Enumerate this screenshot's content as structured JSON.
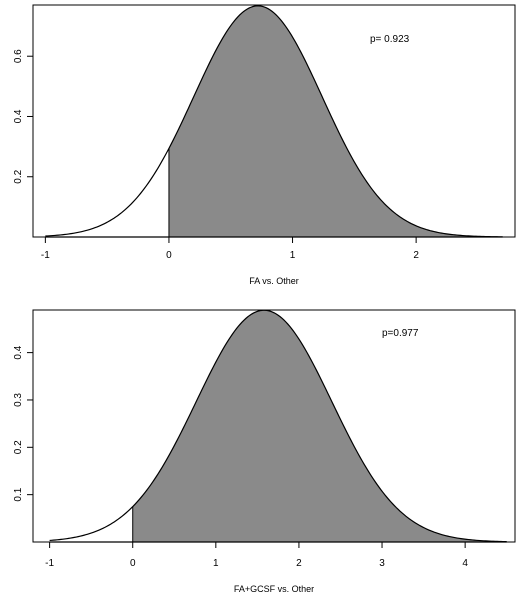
{
  "chart_data": [
    {
      "type": "area",
      "xlabel": "FA vs. Other",
      "annotation": "p= 0.923",
      "xlim": [
        -1.1,
        2.8
      ],
      "ylim": [
        0,
        0.77
      ],
      "xticks": [
        -1,
        0,
        1,
        2
      ],
      "xtick_labels": [
        "-1",
        "0",
        "1",
        "2"
      ],
      "yticks": [
        0.2,
        0.4,
        0.6
      ],
      "ytick_labels": [
        "0.2",
        "0.4",
        "0.6"
      ],
      "density": {
        "mean": 0.72,
        "sd": 0.52,
        "xmin": -1.0,
        "xmax": 2.7
      },
      "shaded_from": 0,
      "shade_color": "#8a8a8a"
    },
    {
      "type": "area",
      "xlabel": "FA+GCSF vs. Other",
      "annotation": "p=0.977",
      "xlim": [
        -1.2,
        4.6
      ],
      "ylim": [
        0,
        0.49
      ],
      "xticks": [
        -1,
        0,
        1,
        2,
        3,
        4
      ],
      "xtick_labels": [
        "-1",
        "0",
        "1",
        "2",
        "3",
        "4"
      ],
      "yticks": [
        0.1,
        0.2,
        0.3,
        0.4
      ],
      "ytick_labels": [
        "0.1",
        "0.2",
        "0.3",
        "0.4"
      ],
      "density": {
        "mean": 1.58,
        "sd": 0.815,
        "xmin": -1.0,
        "xmax": 4.5
      },
      "shaded_from": 0,
      "shade_color": "#8a8a8a"
    }
  ]
}
